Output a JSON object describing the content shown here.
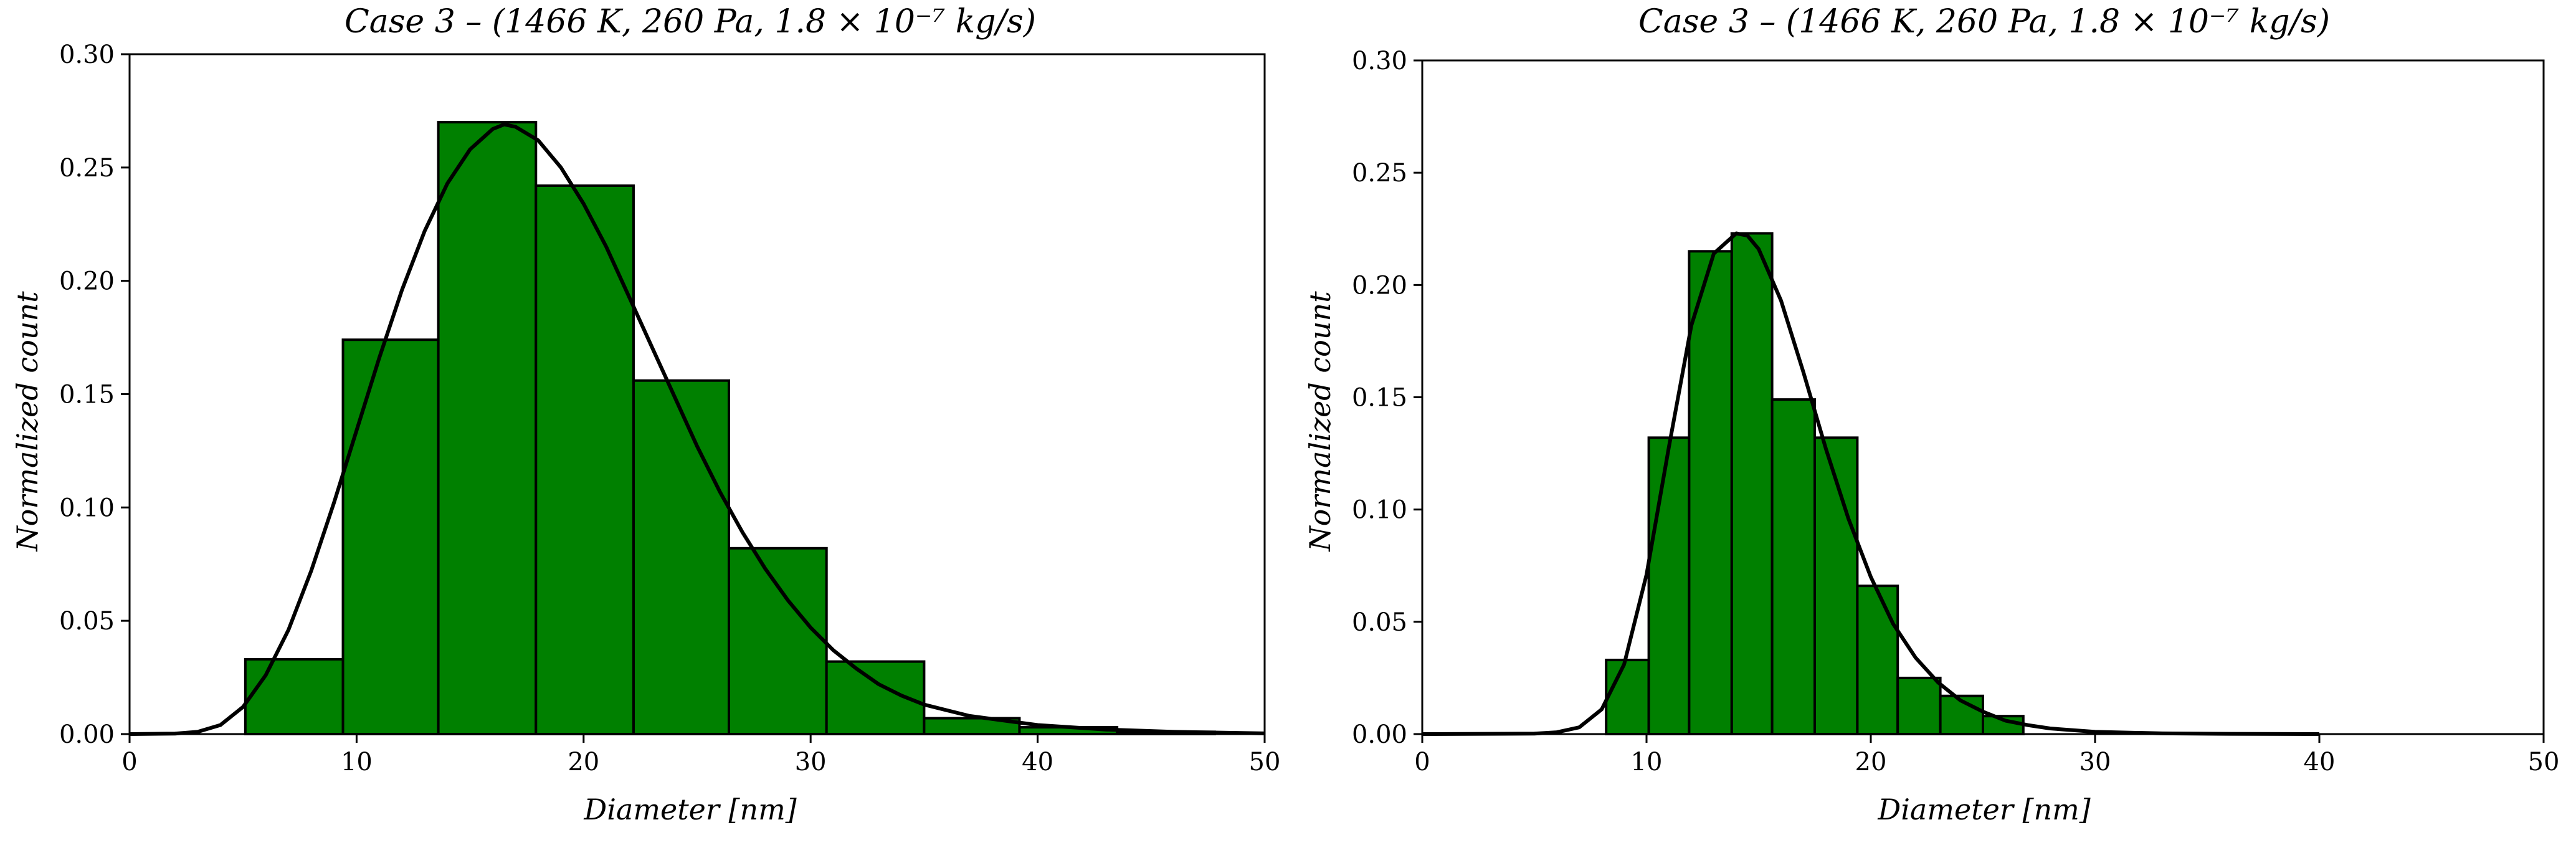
{
  "chart_data": [
    {
      "type": "bar",
      "title": "Case 3  –  (1466 K,  260 Pa,  1.8 × 10⁻⁷ kg/s)",
      "xlabel": "Diameter [nm]",
      "ylabel": "Normalized count",
      "xlim": [
        0,
        50
      ],
      "ylim": [
        0,
        0.3
      ],
      "xticks": [
        "0",
        "10",
        "20",
        "30",
        "40",
        "50"
      ],
      "yticks": [
        "0.00",
        "0.05",
        "0.10",
        "0.15",
        "0.20",
        "0.25",
        "0.30"
      ],
      "bar_color": "#008000",
      "edge_color": "#000000",
      "bins": [
        {
          "x0": 5.1,
          "x1": 9.4,
          "value": 0.033
        },
        {
          "x0": 9.4,
          "x1": 13.6,
          "value": 0.174
        },
        {
          "x0": 13.6,
          "x1": 17.9,
          "value": 0.27
        },
        {
          "x0": 17.9,
          "x1": 22.2,
          "value": 0.242
        },
        {
          "x0": 22.2,
          "x1": 26.4,
          "value": 0.156
        },
        {
          "x0": 26.4,
          "x1": 30.7,
          "value": 0.082
        },
        {
          "x0": 30.7,
          "x1": 35.0,
          "value": 0.032
        },
        {
          "x0": 35.0,
          "x1": 39.2,
          "value": 0.007
        },
        {
          "x0": 39.2,
          "x1": 43.5,
          "value": 0.003
        },
        {
          "x0": 43.5,
          "x1": 47.8,
          "value": 0.001
        }
      ],
      "fit_curve": {
        "color": "#000000",
        "x": [
          0,
          2,
          3,
          4,
          5,
          6,
          7,
          8,
          9,
          10,
          11,
          12,
          13,
          14,
          15,
          16,
          16.5,
          17,
          18,
          19,
          20,
          21,
          22,
          23,
          24,
          25,
          26,
          27,
          28,
          29,
          30,
          31,
          32,
          33,
          34,
          35,
          37,
          40,
          43,
          46,
          50
        ],
        "y": [
          0,
          0.0002,
          0.001,
          0.004,
          0.012,
          0.026,
          0.046,
          0.072,
          0.102,
          0.134,
          0.166,
          0.196,
          0.222,
          0.243,
          0.258,
          0.267,
          0.269,
          0.268,
          0.262,
          0.25,
          0.234,
          0.215,
          0.193,
          0.171,
          0.149,
          0.127,
          0.107,
          0.089,
          0.073,
          0.059,
          0.047,
          0.037,
          0.029,
          0.022,
          0.017,
          0.013,
          0.008,
          0.004,
          0.002,
          0.001,
          0.0003
        ]
      }
    },
    {
      "type": "bar",
      "title": "Case 3  –  (1466 K,  260 Pa,  1.8 × 10⁻⁷ kg/s)",
      "xlabel": "Diameter [nm]",
      "ylabel": "Normalized count",
      "xlim": [
        0,
        50
      ],
      "ylim": [
        0,
        0.3
      ],
      "xticks": [
        "0",
        "10",
        "20",
        "30",
        "40",
        "50"
      ],
      "yticks": [
        "0.00",
        "0.05",
        "0.10",
        "0.15",
        "0.20",
        "0.25",
        "0.30"
      ],
      "bar_color": "#008000",
      "edge_color": "#000000",
      "bins": [
        {
          "x0": 8.2,
          "x1": 10.1,
          "value": 0.033
        },
        {
          "x0": 10.1,
          "x1": 11.9,
          "value": 0.132
        },
        {
          "x0": 11.9,
          "x1": 13.8,
          "value": 0.215
        },
        {
          "x0": 13.8,
          "x1": 15.6,
          "value": 0.223
        },
        {
          "x0": 15.6,
          "x1": 17.5,
          "value": 0.149
        },
        {
          "x0": 17.5,
          "x1": 19.4,
          "value": 0.132
        },
        {
          "x0": 19.4,
          "x1": 21.2,
          "value": 0.066
        },
        {
          "x0": 21.2,
          "x1": 23.1,
          "value": 0.025
        },
        {
          "x0": 23.1,
          "x1": 25.0,
          "value": 0.017
        },
        {
          "x0": 25.0,
          "x1": 26.8,
          "value": 0.008
        }
      ],
      "fit_curve": {
        "color": "#000000",
        "x": [
          0,
          5,
          6,
          7,
          8,
          9,
          10,
          11,
          12,
          13,
          14,
          14.5,
          15,
          16,
          17,
          18,
          19,
          20,
          21,
          22,
          23,
          24,
          25,
          26,
          27,
          28,
          30,
          33,
          36,
          40
        ],
        "y": [
          0,
          0.0002,
          0.0008,
          0.003,
          0.011,
          0.031,
          0.071,
          0.128,
          0.182,
          0.214,
          0.223,
          0.222,
          0.216,
          0.193,
          0.161,
          0.127,
          0.096,
          0.07,
          0.049,
          0.034,
          0.023,
          0.015,
          0.01,
          0.006,
          0.004,
          0.0025,
          0.001,
          0.0003,
          0.0001,
          0
        ]
      }
    }
  ]
}
